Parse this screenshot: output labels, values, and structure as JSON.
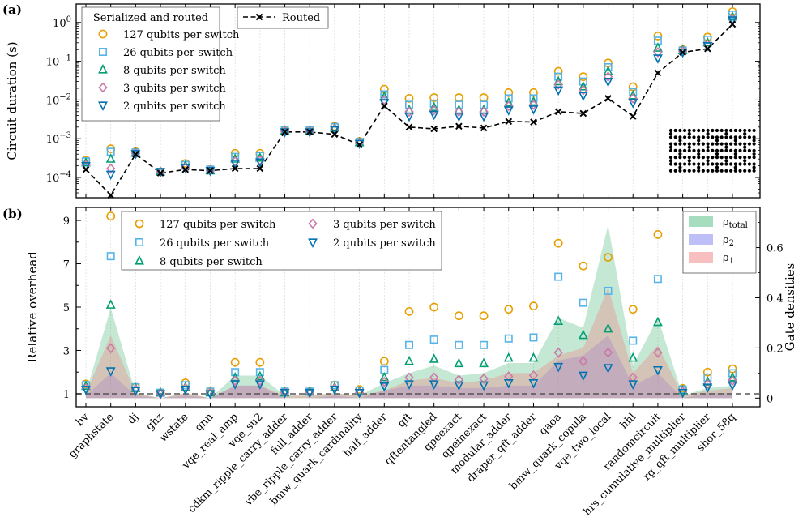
{
  "chart_data": [
    {
      "panel": "(a)",
      "type": "scatter",
      "yscale": "log",
      "ylabel": "Circuit duration (s)",
      "ylim": [
        3e-05,
        3
      ],
      "y_ticks": [
        {
          "value": 0.0001,
          "base": "10",
          "exp": "−4"
        },
        {
          "value": 0.001,
          "base": "10",
          "exp": "−3"
        },
        {
          "value": 0.01,
          "base": "10",
          "exp": "−2"
        },
        {
          "value": 0.1,
          "base": "10",
          "exp": "−1"
        },
        {
          "value": 1,
          "base": "10",
          "exp": "0"
        }
      ],
      "legend_title": "Serialized and routed",
      "categories": [
        "bv",
        "graphstate",
        "dj",
        "ghz",
        "wstate",
        "qnn",
        "vqe_real_amp",
        "vqe_su2",
        "cdkm_ripple_carry_adder",
        "full_adder",
        "vbe_ripple_carry_adder",
        "bmw_quark_cardinality",
        "half_adder",
        "qft",
        "qftentangled",
        "qpeexact",
        "qpeinexact",
        "modular_adder",
        "draper_qft_adder",
        "qaoa",
        "bmw_quark_copula",
        "vqe_two_local",
        "hhl",
        "randomcircuit",
        "hrs_cumulative_multiplier",
        "rg_qft_multiplier",
        "shor_58q"
      ],
      "series": [
        {
          "name": "127 qubits per switch",
          "marker": "circle",
          "color": "#E69F00",
          "values": [
            0.00028,
            0.00055,
            0.00046,
            0.00014,
            0.00023,
            0.00016,
            0.00042,
            0.00042,
            0.00165,
            0.00165,
            0.0021,
            0.00085,
            0.019,
            0.011,
            0.0115,
            0.0115,
            0.0115,
            0.0155,
            0.0155,
            0.055,
            0.04,
            0.09,
            0.022,
            0.45,
            0.2,
            0.42,
            1.9
          ]
        },
        {
          "name": "26 qubits per switch",
          "marker": "square",
          "color": "#56B4E9",
          "values": [
            0.00026,
            0.00046,
            0.00044,
            0.00014,
            0.00021,
            0.00016,
            0.00034,
            0.00036,
            0.00165,
            0.00165,
            0.002,
            0.00082,
            0.014,
            0.0075,
            0.008,
            0.0075,
            0.0075,
            0.011,
            0.011,
            0.04,
            0.03,
            0.07,
            0.016,
            0.34,
            0.19,
            0.36,
            1.6
          ]
        },
        {
          "name": "8 qubits per switch",
          "marker": "triangle-up",
          "color": "#009E73",
          "values": [
            0.00024,
            0.0003,
            0.00043,
            0.00014,
            0.0002,
            0.00015,
            0.0003,
            0.00032,
            0.0016,
            0.0016,
            0.0019,
            0.0008,
            0.012,
            0.0055,
            0.0065,
            0.0055,
            0.0055,
            0.0085,
            0.009,
            0.03,
            0.022,
            0.055,
            0.013,
            0.22,
            0.19,
            0.3,
            1.4
          ]
        },
        {
          "name": "3 qubits per switch",
          "marker": "diamond",
          "color": "#CC79A7",
          "values": [
            0.00021,
            0.00017,
            0.00042,
            0.00014,
            0.00018,
            0.00015,
            0.00026,
            0.00028,
            0.00155,
            0.00155,
            0.0018,
            0.00078,
            0.01,
            0.005,
            0.0055,
            0.005,
            0.005,
            0.007,
            0.0075,
            0.025,
            0.018,
            0.04,
            0.011,
            0.17,
            0.18,
            0.27,
            1.25
          ]
        },
        {
          "name": "2 qubits per switch",
          "marker": "triangle-down",
          "color": "#0072B2",
          "values": [
            0.0002,
            0.00012,
            0.00041,
            0.00014,
            0.00018,
            0.00015,
            0.00023,
            0.00025,
            0.0015,
            0.0015,
            0.0017,
            0.00075,
            0.0085,
            0.0038,
            0.0042,
            0.0038,
            0.0038,
            0.0055,
            0.0058,
            0.018,
            0.013,
            0.03,
            0.0085,
            0.12,
            0.17,
            0.25,
            1.15
          ]
        }
      ],
      "routed": {
        "name": "Routed",
        "marker": "x",
        "linestyle": "dashed",
        "color": "#000000",
        "values": [
          0.00016,
          3.5e-05,
          0.0004,
          0.00013,
          0.00016,
          0.00015,
          0.00017,
          0.00017,
          0.0015,
          0.0015,
          0.0013,
          0.0007,
          0.007,
          0.002,
          0.0018,
          0.0021,
          0.0019,
          0.0028,
          0.0027,
          0.005,
          0.0045,
          0.011,
          0.0038,
          0.05,
          0.17,
          0.21,
          0.9
        ]
      }
    },
    {
      "panel": "(b)",
      "type": "scatter",
      "ylabel": "Relative overhead",
      "ylim": [
        0.4,
        9.6
      ],
      "y_ticks": [
        1,
        3,
        5,
        7,
        9
      ],
      "baseline": 1,
      "y2label": "Gate densities",
      "y2lim": [
        -0.0345,
        0.76
      ],
      "y2_ticks": [
        0,
        0.2,
        0.4,
        0.6
      ],
      "y2_tick_labels": [
        "0",
        "0.2",
        "0.4",
        "0.6"
      ],
      "series": [
        {
          "name": "127 qubits per switch",
          "marker": "circle",
          "color": "#E69F00",
          "values": [
            1.45,
            9.2,
            1.3,
            1.05,
            1.5,
            1.1,
            2.45,
            2.45,
            1.1,
            1.1,
            1.4,
            1.2,
            2.5,
            4.8,
            5.0,
            4.6,
            4.6,
            4.9,
            5.05,
            7.95,
            6.9,
            7.3,
            4.9,
            8.35,
            1.25,
            2.0,
            2.15
          ]
        },
        {
          "name": "26 qubits per switch",
          "marker": "square",
          "color": "#56B4E9",
          "values": [
            1.4,
            7.35,
            1.3,
            1.05,
            1.4,
            1.1,
            2.0,
            2.0,
            1.1,
            1.1,
            1.4,
            1.15,
            2.1,
            3.25,
            3.5,
            3.25,
            3.25,
            3.55,
            3.6,
            6.4,
            5.2,
            5.75,
            3.45,
            6.3,
            1.2,
            1.75,
            1.95
          ]
        },
        {
          "name": "8 qubits per switch",
          "marker": "triangle-up",
          "color": "#009E73",
          "values": [
            1.35,
            5.1,
            1.25,
            1.05,
            1.3,
            1.05,
            1.75,
            1.8,
            1.05,
            1.1,
            1.3,
            1.1,
            1.75,
            2.5,
            2.6,
            2.4,
            2.4,
            2.65,
            2.65,
            4.35,
            3.7,
            4.0,
            2.65,
            4.3,
            1.15,
            1.55,
            1.75
          ]
        },
        {
          "name": "3 qubits per switch",
          "marker": "diamond",
          "color": "#CC79A7",
          "values": [
            1.25,
            3.1,
            1.2,
            1.0,
            1.25,
            1.05,
            1.6,
            1.6,
            1.05,
            1.05,
            1.25,
            1.05,
            1.55,
            1.75,
            1.75,
            1.65,
            1.7,
            1.8,
            1.85,
            2.9,
            2.5,
            2.9,
            1.75,
            2.9,
            1.1,
            1.45,
            1.6
          ]
        },
        {
          "name": "2 qubits per switch",
          "marker": "triangle-down",
          "color": "#0072B2",
          "values": [
            1.2,
            2.05,
            1.15,
            1.0,
            1.2,
            1.0,
            1.45,
            1.45,
            1.05,
            1.05,
            1.2,
            1.05,
            1.35,
            1.45,
            1.45,
            1.4,
            1.4,
            1.5,
            1.5,
            2.25,
            1.85,
            2.2,
            1.45,
            2.1,
            1.05,
            1.3,
            1.4
          ]
        }
      ],
      "densities": [
        {
          "name": "ρ",
          "sub": "total",
          "color": "#3CB371",
          "opacity": 0.3,
          "values": [
            0.02,
            0.36,
            0.02,
            0.0,
            0.02,
            0.0,
            0.09,
            0.09,
            0.01,
            0.01,
            0.02,
            0.01,
            0.06,
            0.1,
            0.13,
            0.09,
            0.1,
            0.14,
            0.14,
            0.32,
            0.28,
            0.69,
            0.13,
            0.32,
            0.01,
            0.04,
            0.05
          ]
        },
        {
          "name": "ρ",
          "sub": "2",
          "color": "#7070F0",
          "opacity": 0.3,
          "values": [
            0.01,
            0.1,
            0.01,
            0.0,
            0.01,
            0.0,
            0.05,
            0.05,
            0.0,
            0.0,
            0.01,
            0.0,
            0.03,
            0.05,
            0.05,
            0.04,
            0.04,
            0.05,
            0.05,
            0.15,
            0.17,
            0.25,
            0.05,
            0.1,
            0.0,
            0.02,
            0.02
          ]
        },
        {
          "name": "ρ",
          "sub": "1",
          "color": "#F08080",
          "opacity": 0.35,
          "values": [
            0.02,
            0.25,
            0.02,
            0.0,
            0.02,
            0.0,
            0.05,
            0.05,
            0.01,
            0.01,
            0.02,
            0.01,
            0.03,
            0.07,
            0.08,
            0.06,
            0.07,
            0.1,
            0.1,
            0.17,
            0.2,
            0.44,
            0.1,
            0.21,
            0.01,
            0.03,
            0.04
          ]
        }
      ]
    }
  ]
}
